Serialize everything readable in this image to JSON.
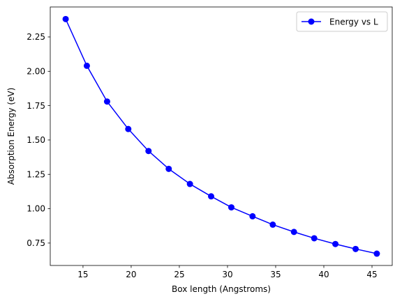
{
  "chart_data": {
    "type": "line",
    "title": "",
    "xlabel": "Box length (Angstroms)",
    "ylabel": "Absorption Energy (eV)",
    "xlim": [
      11.6,
      47.1
    ],
    "ylim": [
      0.587,
      2.468
    ],
    "x_ticks": [
      15,
      20,
      25,
      30,
      35,
      40,
      45
    ],
    "x_tick_labels": [
      "15",
      "20",
      "25",
      "30",
      "35",
      "40",
      "45"
    ],
    "y_ticks": [
      0.75,
      1.0,
      1.25,
      1.5,
      1.75,
      2.0,
      2.25
    ],
    "y_tick_labels": [
      "0.75",
      "1.00",
      "1.25",
      "1.50",
      "1.75",
      "2.00",
      "2.25"
    ],
    "grid": false,
    "legend_position": "top-right",
    "series": [
      {
        "name": "Energy vs L",
        "color": "#0000ff",
        "marker": "circle",
        "x": [
          13.2,
          15.4,
          17.5,
          19.7,
          21.8,
          23.9,
          26.1,
          28.3,
          30.4,
          32.6,
          34.7,
          36.9,
          39.0,
          41.2,
          43.3,
          45.5
        ],
        "y": [
          2.38,
          2.04,
          1.78,
          1.58,
          1.42,
          1.29,
          1.18,
          1.09,
          1.01,
          0.945,
          0.884,
          0.831,
          0.785,
          0.743,
          0.707,
          0.673
        ]
      }
    ]
  }
}
